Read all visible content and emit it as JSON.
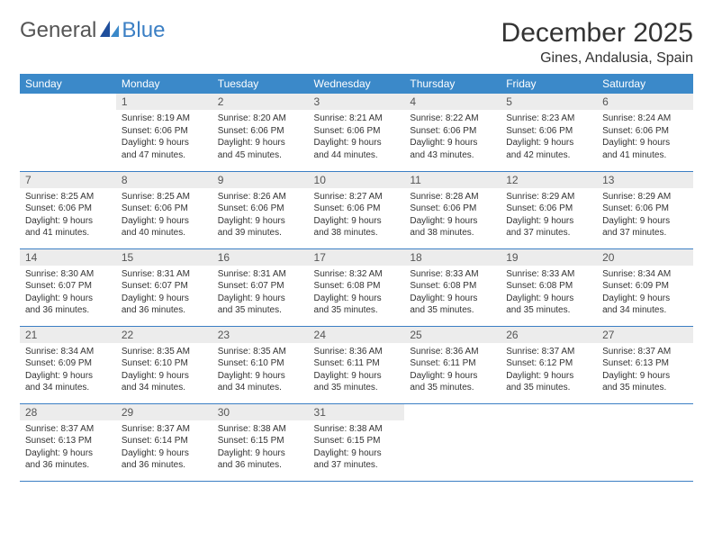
{
  "logo": {
    "part1": "General",
    "part2": "Blue"
  },
  "title": "December 2025",
  "location": "Gines, Andalusia, Spain",
  "colors": {
    "header_bg": "#3b89c9",
    "header_text": "#ffffff",
    "daynum_bg": "#ececec",
    "text": "#333333",
    "accent": "#3b7fc4",
    "rule": "#3b7fc4"
  },
  "day_headers": [
    "Sunday",
    "Monday",
    "Tuesday",
    "Wednesday",
    "Thursday",
    "Friday",
    "Saturday"
  ],
  "weeks": [
    [
      {
        "n": "",
        "sr": "",
        "ss": "",
        "dl1": "",
        "dl2": ""
      },
      {
        "n": "1",
        "sr": "Sunrise: 8:19 AM",
        "ss": "Sunset: 6:06 PM",
        "dl1": "Daylight: 9 hours",
        "dl2": "and 47 minutes."
      },
      {
        "n": "2",
        "sr": "Sunrise: 8:20 AM",
        "ss": "Sunset: 6:06 PM",
        "dl1": "Daylight: 9 hours",
        "dl2": "and 45 minutes."
      },
      {
        "n": "3",
        "sr": "Sunrise: 8:21 AM",
        "ss": "Sunset: 6:06 PM",
        "dl1": "Daylight: 9 hours",
        "dl2": "and 44 minutes."
      },
      {
        "n": "4",
        "sr": "Sunrise: 8:22 AM",
        "ss": "Sunset: 6:06 PM",
        "dl1": "Daylight: 9 hours",
        "dl2": "and 43 minutes."
      },
      {
        "n": "5",
        "sr": "Sunrise: 8:23 AM",
        "ss": "Sunset: 6:06 PM",
        "dl1": "Daylight: 9 hours",
        "dl2": "and 42 minutes."
      },
      {
        "n": "6",
        "sr": "Sunrise: 8:24 AM",
        "ss": "Sunset: 6:06 PM",
        "dl1": "Daylight: 9 hours",
        "dl2": "and 41 minutes."
      }
    ],
    [
      {
        "n": "7",
        "sr": "Sunrise: 8:25 AM",
        "ss": "Sunset: 6:06 PM",
        "dl1": "Daylight: 9 hours",
        "dl2": "and 41 minutes."
      },
      {
        "n": "8",
        "sr": "Sunrise: 8:25 AM",
        "ss": "Sunset: 6:06 PM",
        "dl1": "Daylight: 9 hours",
        "dl2": "and 40 minutes."
      },
      {
        "n": "9",
        "sr": "Sunrise: 8:26 AM",
        "ss": "Sunset: 6:06 PM",
        "dl1": "Daylight: 9 hours",
        "dl2": "and 39 minutes."
      },
      {
        "n": "10",
        "sr": "Sunrise: 8:27 AM",
        "ss": "Sunset: 6:06 PM",
        "dl1": "Daylight: 9 hours",
        "dl2": "and 38 minutes."
      },
      {
        "n": "11",
        "sr": "Sunrise: 8:28 AM",
        "ss": "Sunset: 6:06 PM",
        "dl1": "Daylight: 9 hours",
        "dl2": "and 38 minutes."
      },
      {
        "n": "12",
        "sr": "Sunrise: 8:29 AM",
        "ss": "Sunset: 6:06 PM",
        "dl1": "Daylight: 9 hours",
        "dl2": "and 37 minutes."
      },
      {
        "n": "13",
        "sr": "Sunrise: 8:29 AM",
        "ss": "Sunset: 6:06 PM",
        "dl1": "Daylight: 9 hours",
        "dl2": "and 37 minutes."
      }
    ],
    [
      {
        "n": "14",
        "sr": "Sunrise: 8:30 AM",
        "ss": "Sunset: 6:07 PM",
        "dl1": "Daylight: 9 hours",
        "dl2": "and 36 minutes."
      },
      {
        "n": "15",
        "sr": "Sunrise: 8:31 AM",
        "ss": "Sunset: 6:07 PM",
        "dl1": "Daylight: 9 hours",
        "dl2": "and 36 minutes."
      },
      {
        "n": "16",
        "sr": "Sunrise: 8:31 AM",
        "ss": "Sunset: 6:07 PM",
        "dl1": "Daylight: 9 hours",
        "dl2": "and 35 minutes."
      },
      {
        "n": "17",
        "sr": "Sunrise: 8:32 AM",
        "ss": "Sunset: 6:08 PM",
        "dl1": "Daylight: 9 hours",
        "dl2": "and 35 minutes."
      },
      {
        "n": "18",
        "sr": "Sunrise: 8:33 AM",
        "ss": "Sunset: 6:08 PM",
        "dl1": "Daylight: 9 hours",
        "dl2": "and 35 minutes."
      },
      {
        "n": "19",
        "sr": "Sunrise: 8:33 AM",
        "ss": "Sunset: 6:08 PM",
        "dl1": "Daylight: 9 hours",
        "dl2": "and 35 minutes."
      },
      {
        "n": "20",
        "sr": "Sunrise: 8:34 AM",
        "ss": "Sunset: 6:09 PM",
        "dl1": "Daylight: 9 hours",
        "dl2": "and 34 minutes."
      }
    ],
    [
      {
        "n": "21",
        "sr": "Sunrise: 8:34 AM",
        "ss": "Sunset: 6:09 PM",
        "dl1": "Daylight: 9 hours",
        "dl2": "and 34 minutes."
      },
      {
        "n": "22",
        "sr": "Sunrise: 8:35 AM",
        "ss": "Sunset: 6:10 PM",
        "dl1": "Daylight: 9 hours",
        "dl2": "and 34 minutes."
      },
      {
        "n": "23",
        "sr": "Sunrise: 8:35 AM",
        "ss": "Sunset: 6:10 PM",
        "dl1": "Daylight: 9 hours",
        "dl2": "and 34 minutes."
      },
      {
        "n": "24",
        "sr": "Sunrise: 8:36 AM",
        "ss": "Sunset: 6:11 PM",
        "dl1": "Daylight: 9 hours",
        "dl2": "and 35 minutes."
      },
      {
        "n": "25",
        "sr": "Sunrise: 8:36 AM",
        "ss": "Sunset: 6:11 PM",
        "dl1": "Daylight: 9 hours",
        "dl2": "and 35 minutes."
      },
      {
        "n": "26",
        "sr": "Sunrise: 8:37 AM",
        "ss": "Sunset: 6:12 PM",
        "dl1": "Daylight: 9 hours",
        "dl2": "and 35 minutes."
      },
      {
        "n": "27",
        "sr": "Sunrise: 8:37 AM",
        "ss": "Sunset: 6:13 PM",
        "dl1": "Daylight: 9 hours",
        "dl2": "and 35 minutes."
      }
    ],
    [
      {
        "n": "28",
        "sr": "Sunrise: 8:37 AM",
        "ss": "Sunset: 6:13 PM",
        "dl1": "Daylight: 9 hours",
        "dl2": "and 36 minutes."
      },
      {
        "n": "29",
        "sr": "Sunrise: 8:37 AM",
        "ss": "Sunset: 6:14 PM",
        "dl1": "Daylight: 9 hours",
        "dl2": "and 36 minutes."
      },
      {
        "n": "30",
        "sr": "Sunrise: 8:38 AM",
        "ss": "Sunset: 6:15 PM",
        "dl1": "Daylight: 9 hours",
        "dl2": "and 36 minutes."
      },
      {
        "n": "31",
        "sr": "Sunrise: 8:38 AM",
        "ss": "Sunset: 6:15 PM",
        "dl1": "Daylight: 9 hours",
        "dl2": "and 37 minutes."
      },
      {
        "n": "",
        "sr": "",
        "ss": "",
        "dl1": "",
        "dl2": ""
      },
      {
        "n": "",
        "sr": "",
        "ss": "",
        "dl1": "",
        "dl2": ""
      },
      {
        "n": "",
        "sr": "",
        "ss": "",
        "dl1": "",
        "dl2": ""
      }
    ]
  ]
}
